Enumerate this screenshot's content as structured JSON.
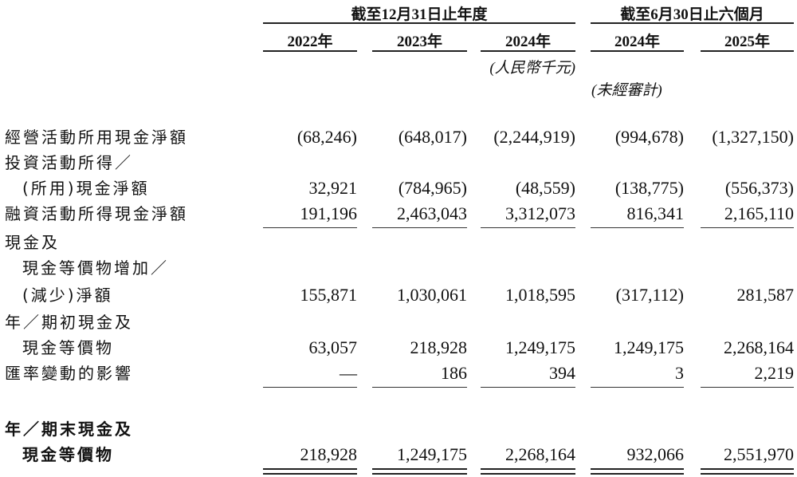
{
  "header": {
    "group_annual": "截至12月31日止年度",
    "group_interim": "截至6月30日止六個月",
    "years": [
      "2022年",
      "2023年",
      "2024年",
      "2024年",
      "2025年"
    ],
    "unit_note": "(人民幣千元)",
    "unaudited_note": "(未經審計)"
  },
  "rows": [
    {
      "label": [
        "經營活動所用現金淨額"
      ],
      "values": [
        "(68,246)",
        "(648,017)",
        "(2,244,919)",
        "(994,678)",
        "(1,327,150)"
      ]
    },
    {
      "label": [
        "投資活動所得／",
        "(所用)現金淨額"
      ],
      "values": [
        "32,921",
        "(784,965)",
        "(48,559)",
        "(138,775)",
        "(556,373)"
      ]
    },
    {
      "label": [
        "融資活動所得現金淨額"
      ],
      "values": [
        "191,196",
        "2,463,043",
        "3,312,073",
        "816,341",
        "2,165,110"
      ]
    },
    {
      "label": [
        "現金及",
        "現金等價物增加／",
        "(減少)淨額"
      ],
      "values": [
        "155,871",
        "1,030,061",
        "1,018,595",
        "(317,112)",
        "281,587"
      ]
    },
    {
      "label": [
        "年／期初現金及",
        "現金等價物"
      ],
      "values": [
        "63,057",
        "218,928",
        "1,249,175",
        "1,249,175",
        "2,268,164"
      ]
    },
    {
      "label": [
        "匯率變動的影響"
      ],
      "values": [
        "—",
        "186",
        "394",
        "3",
        "2,219"
      ]
    },
    {
      "label": [
        "年／期末現金及",
        "現金等價物"
      ],
      "values": [
        "218,928",
        "1,249,175",
        "2,268,164",
        "932,066",
        "2,551,970"
      ]
    }
  ]
}
